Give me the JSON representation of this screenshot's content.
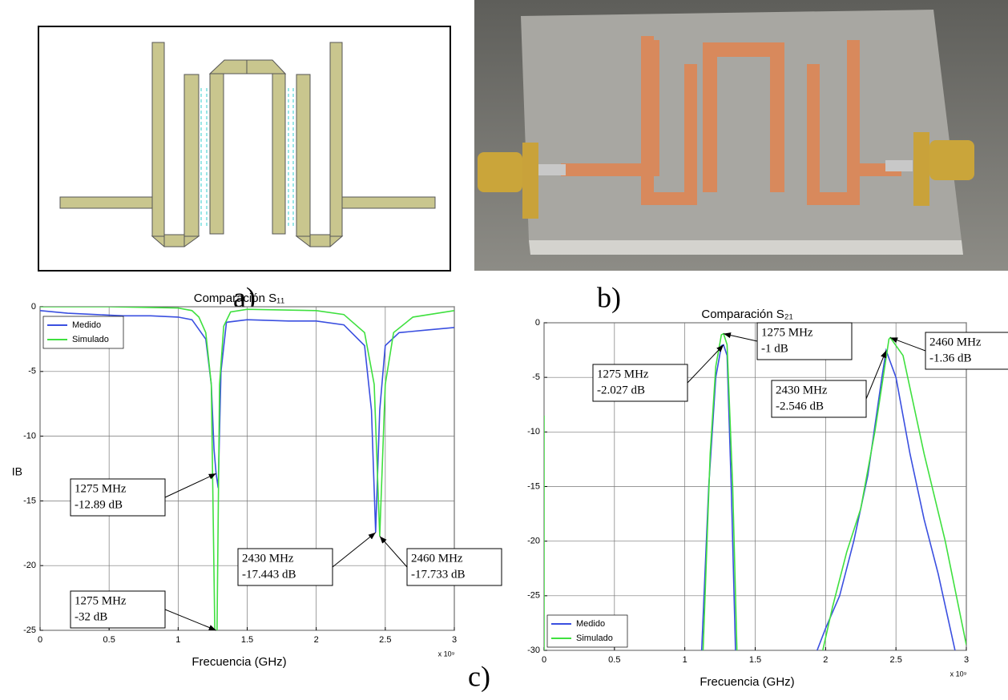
{
  "panels": {
    "a": "a)",
    "b": "b)",
    "c": "c)"
  },
  "chart_data": [
    {
      "type": "line",
      "title": "Comparación S₁₁",
      "x_label": "Frecuencia (GHz)",
      "y_label": "IB",
      "x_note": "x 10⁹",
      "xlim": [
        0,
        3
      ],
      "xticks": [
        0,
        0.5,
        1,
        1.5,
        2,
        2.5,
        3
      ],
      "ylim": [
        -25,
        0
      ],
      "yticks": [
        0,
        -5,
        -10,
        -15,
        -20,
        -25
      ],
      "grid": true,
      "legend": "upper left",
      "series": [
        {
          "name": "Medido",
          "color": "#3a4fe0",
          "x": [
            0,
            0.2,
            0.4,
            0.6,
            0.8,
            1.0,
            1.1,
            1.2,
            1.24,
            1.26,
            1.275,
            1.29,
            1.31,
            1.35,
            1.5,
            1.8,
            2.0,
            2.2,
            2.35,
            2.4,
            2.43,
            2.46,
            2.5,
            2.6,
            2.8,
            3.0
          ],
          "values": [
            -0.3,
            -0.5,
            -0.6,
            -0.7,
            -0.7,
            -0.8,
            -1.0,
            -2.5,
            -6,
            -11,
            -12.89,
            -14,
            -5,
            -1.2,
            -1.0,
            -1.1,
            -1.1,
            -1.4,
            -3,
            -8,
            -17.443,
            -8,
            -3,
            -2,
            -1.8,
            -1.6
          ]
        },
        {
          "name": "Simulado",
          "color": "#3fe03f",
          "x": [
            0,
            0.5,
            1.0,
            1.1,
            1.15,
            1.2,
            1.24,
            1.275,
            1.3,
            1.33,
            1.38,
            1.5,
            2.0,
            2.2,
            2.35,
            2.42,
            2.46,
            2.5,
            2.56,
            2.7,
            3.0
          ],
          "values": [
            0,
            0,
            -0.1,
            -0.3,
            -0.8,
            -2,
            -6,
            -32,
            -6,
            -1.5,
            -0.4,
            -0.2,
            -0.3,
            -0.6,
            -2,
            -6,
            -17.733,
            -6,
            -2,
            -0.8,
            -0.3
          ]
        }
      ],
      "annotations": [
        {
          "lines": [
            "1275 MHz",
            "-12.89 dB"
          ],
          "x": 1.275,
          "y": -12.89
        },
        {
          "lines": [
            "1275 MHz",
            "-32 dB"
          ],
          "x": 1.275,
          "y": -32
        },
        {
          "lines": [
            "2430 MHz",
            "-17.443 dB"
          ],
          "x": 2.43,
          "y": -17.443
        },
        {
          "lines": [
            "2460 MHz",
            "-17.733 dB"
          ],
          "x": 2.46,
          "y": -17.733
        }
      ]
    },
    {
      "type": "line",
      "title": "Comparación S₂₁",
      "x_label": "Frecuencia (GHz)",
      "x_note": "x 10⁹",
      "xlim": [
        0,
        3
      ],
      "xticks": [
        0,
        0.5,
        1,
        1.5,
        2,
        2.5,
        3
      ],
      "ylim": [
        -30,
        0
      ],
      "yticks": [
        0,
        -5,
        -10,
        -15,
        -20,
        -25,
        -30
      ],
      "grid": true,
      "legend": "lower left",
      "series": [
        {
          "name": "Medido",
          "color": "#3a4fe0",
          "x": [
            1.12,
            1.17,
            1.22,
            1.26,
            1.275,
            1.3,
            1.33,
            1.36,
            1.6,
            1.94,
            2.0,
            2.1,
            2.2,
            2.3,
            2.4,
            2.43,
            2.5,
            2.6,
            2.7,
            2.8,
            2.92
          ],
          "values": [
            -30,
            -15,
            -5,
            -2.1,
            -2.027,
            -3,
            -15,
            -30,
            null,
            -30,
            -28,
            -25,
            -20,
            -14,
            -5,
            -2.546,
            -5,
            -12,
            -18,
            -23,
            -30
          ]
        },
        {
          "name": "Simulado",
          "color": "#3fe03f",
          "x": [
            0,
            0,
            0.6,
            1.13,
            1.18,
            1.22,
            1.26,
            1.275,
            1.3,
            1.34,
            1.37,
            1.6,
            1.98,
            2.05,
            2.15,
            2.25,
            2.35,
            2.45,
            2.46,
            2.55,
            2.7,
            2.85,
            3.0
          ],
          "values": [
            -8.5,
            -30,
            null,
            -30,
            -12,
            -4,
            -1.1,
            -1,
            -2,
            -15,
            -30,
            null,
            -30,
            -26,
            -21,
            -17,
            -10,
            -1.5,
            -1.36,
            -3,
            -12,
            -20,
            -29.5
          ]
        }
      ],
      "annotations": [
        {
          "lines": [
            "1275 MHz",
            "-1 dB"
          ],
          "x": 1.275,
          "y": -1
        },
        {
          "lines": [
            "1275 MHz",
            "-2.027 dB"
          ],
          "x": 1.275,
          "y": -2.027
        },
        {
          "lines": [
            "2460 MHz",
            "-1.36 dB"
          ],
          "x": 2.46,
          "y": -1.36
        },
        {
          "lines": [
            "2430 MHz",
            "-2.546 dB"
          ],
          "x": 2.43,
          "y": -2.546
        }
      ]
    }
  ]
}
